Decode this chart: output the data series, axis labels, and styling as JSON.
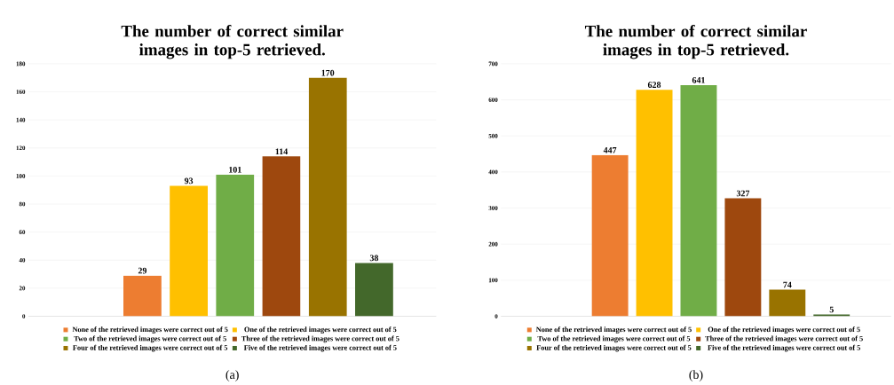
{
  "chart_data": [
    {
      "type": "bar",
      "title": "The number of correct similar images in top-5 retrieved.",
      "categories": [
        null
      ],
      "ylim": [
        0,
        180
      ],
      "yticks": [
        0,
        20,
        40,
        60,
        80,
        100,
        120,
        140,
        160,
        180
      ],
      "grid": "y",
      "legend": "bottom",
      "tick_labels": "y",
      "data_labels": true,
      "annotations": [
        "(a)"
      ],
      "series": [
        {
          "name": "None of the retrieved images were correct out of 5",
          "color": "#ed7d31",
          "values": [
            29
          ]
        },
        {
          "name": "One of the retrieved images were correct out of 5",
          "color": "#ffc000",
          "values": [
            93
          ]
        },
        {
          "name": "Two of the retrieved images were correct out of 5",
          "color": "#70ad47",
          "values": [
            101
          ]
        },
        {
          "name": "Three of the retrieved images were correct out of 5",
          "color": "#9e480e",
          "values": [
            114
          ]
        },
        {
          "name": "Four of the retrieved images were correct out of 5",
          "color": "#997300",
          "values": [
            170
          ]
        },
        {
          "name": "Five of the retrieved images were correct out of 5",
          "color": "#43682b",
          "values": [
            38
          ]
        }
      ]
    },
    {
      "type": "bar",
      "title": "The number of correct similar images in top-5 retrieved.",
      "categories": [
        null
      ],
      "ylim": [
        0,
        700
      ],
      "yticks": [
        0,
        100,
        200,
        300,
        400,
        500,
        600,
        700
      ],
      "grid": "y",
      "legend": "bottom",
      "tick_labels": "y",
      "data_labels": true,
      "annotations": [
        "(b)"
      ],
      "series": [
        {
          "name": "None of the retrieved images were correct out of 5",
          "color": "#ed7d31",
          "values": [
            447
          ]
        },
        {
          "name": "One of the retrieved images were correct out of 5",
          "color": "#ffc000",
          "values": [
            628
          ]
        },
        {
          "name": "Two of the retrieved images were correct out of 5",
          "color": "#70ad47",
          "values": [
            641
          ]
        },
        {
          "name": "Three of the retrieved images were correct out of 5",
          "color": "#9e480e",
          "values": [
            327
          ]
        },
        {
          "name": "Four of the retrieved images were correct out of 5",
          "color": "#997300",
          "values": [
            74
          ]
        },
        {
          "name": "Five of the retrieved images were correct out of 5",
          "color": "#43682b",
          "values": [
            5
          ]
        }
      ]
    }
  ]
}
